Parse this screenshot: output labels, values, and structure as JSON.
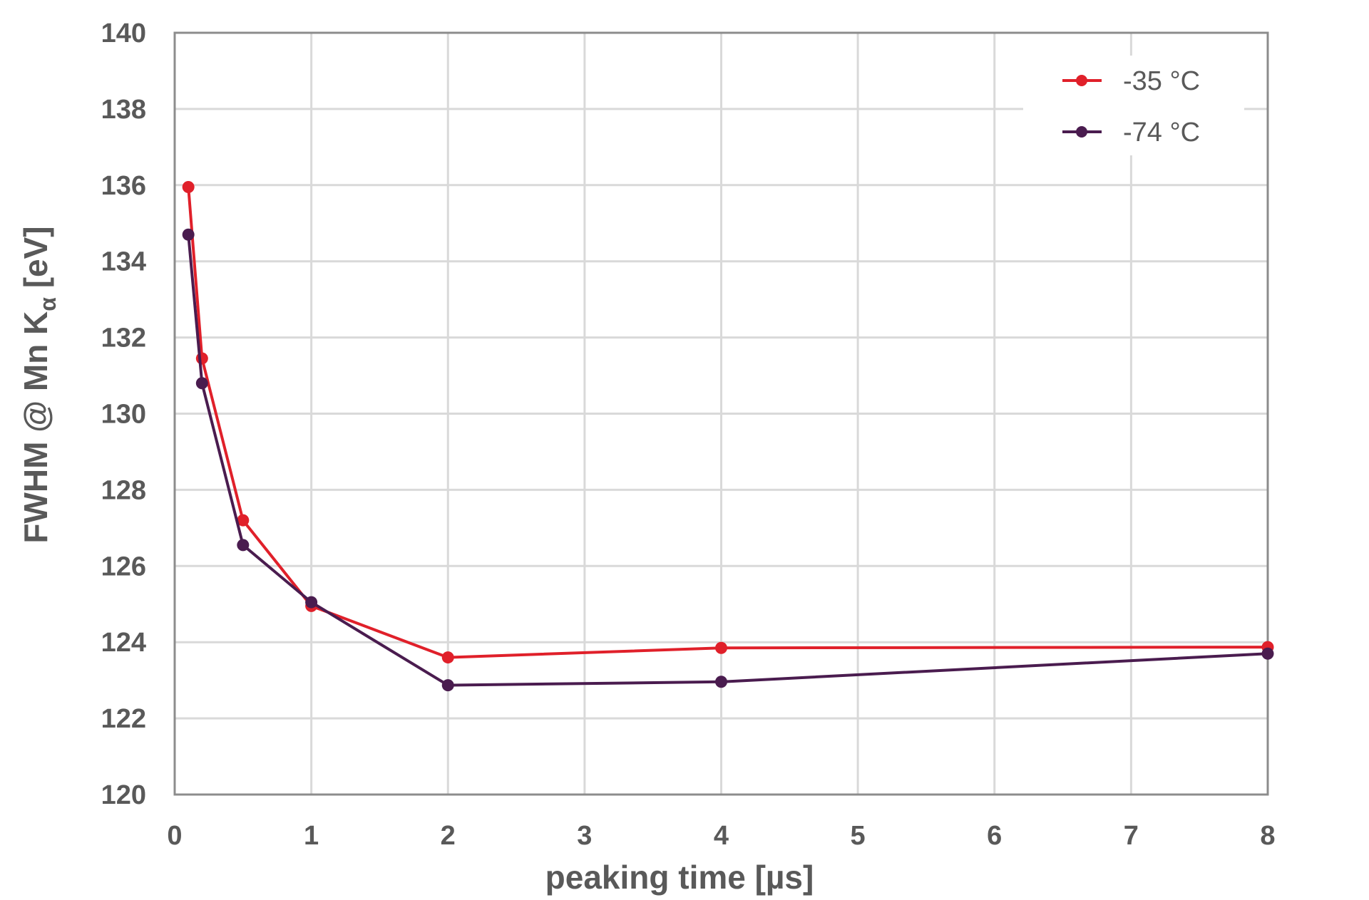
{
  "chart_data": {
    "type": "line",
    "title": "",
    "xlabel": "peaking time [µs]",
    "ylabel": {
      "main": "FWHM @ Mn K",
      "subscript": "α",
      "unit": " [eV]"
    },
    "xlim": [
      0,
      8
    ],
    "ylim": [
      120,
      140
    ],
    "x_ticks": [
      {
        "label": "0",
        "value": 0
      },
      {
        "label": "1",
        "value": 1
      },
      {
        "label": "2",
        "value": 2
      },
      {
        "label": "3",
        "value": 3
      },
      {
        "label": "4",
        "value": 4
      },
      {
        "label": "5",
        "value": 5
      },
      {
        "label": "6",
        "value": 6
      },
      {
        "label": "7",
        "value": 7
      },
      {
        "label": "8",
        "value": 8
      }
    ],
    "y_ticks": [
      {
        "label": "120",
        "value": 120
      },
      {
        "label": "122",
        "value": 122
      },
      {
        "label": "124",
        "value": 124
      },
      {
        "label": "126",
        "value": 126
      },
      {
        "label": "128",
        "value": 128
      },
      {
        "label": "130",
        "value": 130
      },
      {
        "label": "132",
        "value": 132
      },
      {
        "label": "134",
        "value": 134
      },
      {
        "label": "136",
        "value": 136
      },
      {
        "label": "138",
        "value": 138
      },
      {
        "label": "140",
        "value": 140
      }
    ],
    "grid": true,
    "legend": "top-right",
    "series": [
      {
        "name": "-35 °C",
        "color": "#e0202a",
        "points": [
          {
            "x": 0.1,
            "y": 135.95
          },
          {
            "x": 0.2,
            "y": 131.45
          },
          {
            "x": 0.5,
            "y": 127.2
          },
          {
            "x": 1,
            "y": 124.95
          },
          {
            "x": 2,
            "y": 123.6
          },
          {
            "x": 4,
            "y": 123.85
          },
          {
            "x": 8,
            "y": 123.87
          }
        ]
      },
      {
        "name": "-74 °C",
        "color": "#4a1c4f",
        "points": [
          {
            "x": 0.1,
            "y": 134.7
          },
          {
            "x": 0.2,
            "y": 130.8
          },
          {
            "x": 0.5,
            "y": 126.55
          },
          {
            "x": 1,
            "y": 125.05
          },
          {
            "x": 2,
            "y": 122.87
          },
          {
            "x": 4,
            "y": 122.96
          },
          {
            "x": 8,
            "y": 123.7
          }
        ]
      }
    ]
  }
}
